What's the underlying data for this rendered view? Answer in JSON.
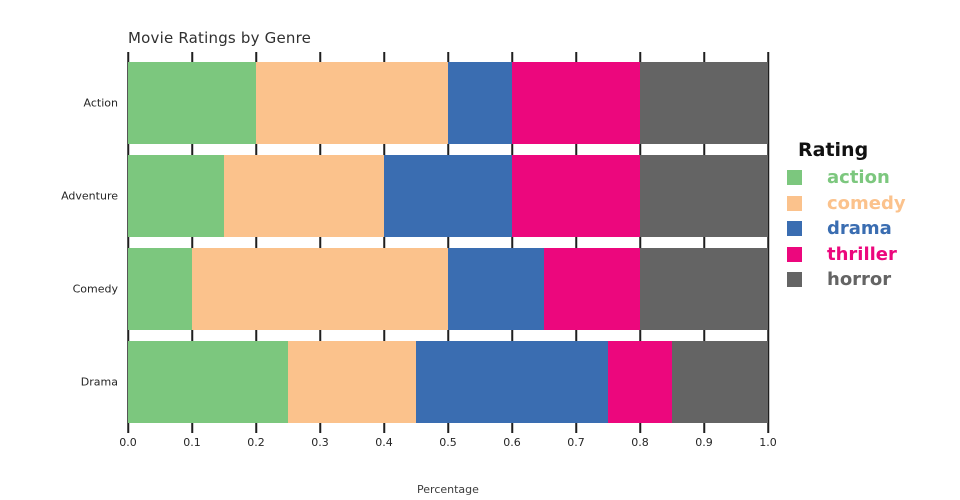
{
  "title": "Movie Ratings by Genre",
  "legend": {
    "title": "Rating"
  },
  "colors": {
    "grid": "#1f1f1f",
    "axis_text": "#262626",
    "background": "#ffffff"
  },
  "chart_data": {
    "type": "bar",
    "orientation": "horizontal",
    "stacked": true,
    "title": "Movie Ratings by Genre",
    "xlabel": "Percentage",
    "ylabel": "",
    "xlim": [
      0.0,
      1.0
    ],
    "grid": true,
    "legend_position": "right",
    "legend_title": "Rating",
    "categories": [
      "Action",
      "Adventure",
      "Comedy",
      "Drama"
    ],
    "xticks": [
      "0.0",
      "0.1",
      "0.2",
      "0.3",
      "0.4",
      "0.5",
      "0.6",
      "0.7",
      "0.8",
      "0.9",
      "1.0"
    ],
    "series": [
      {
        "name": "action",
        "color": "#7cc77e",
        "values": [
          0.2,
          0.15,
          0.1,
          0.25
        ]
      },
      {
        "name": "comedy",
        "color": "#fbc28c",
        "values": [
          0.3,
          0.25,
          0.4,
          0.2
        ]
      },
      {
        "name": "drama",
        "color": "#3a6db1",
        "values": [
          0.1,
          0.2,
          0.15,
          0.3
        ]
      },
      {
        "name": "thriller",
        "color": "#ec077d",
        "values": [
          0.2,
          0.2,
          0.15,
          0.1
        ]
      },
      {
        "name": "horror",
        "color": "#646464",
        "values": [
          0.2,
          0.2,
          0.2,
          0.15
        ]
      }
    ]
  }
}
